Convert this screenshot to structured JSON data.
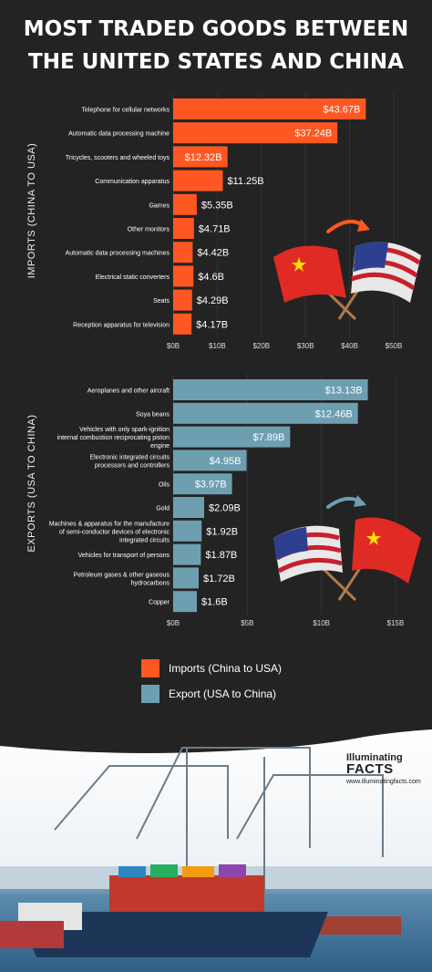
{
  "title_line1": "MOST TRADED GOODS BETWEEN",
  "title_line2": "THE UNITED STATES AND CHINA",
  "colors": {
    "imports": "#ff5722",
    "exports": "#6e9fb1",
    "background": "#232323"
  },
  "chart_data": [
    {
      "type": "bar",
      "orientation": "horizontal",
      "ylabel": "IMPORTS (CHINA TO USA)",
      "categories": [
        "Telephone for cellular networks",
        "Automatic data processing machine",
        "Tricycles, scooters and wheeled toys",
        "Communication apparatus",
        "Games",
        "Other monitors",
        "Automatic data processing machines",
        "Electrical static converters",
        "Seats",
        "Reception apparatus for television"
      ],
      "values": [
        43.67,
        37.24,
        12.32,
        11.25,
        5.35,
        4.71,
        4.42,
        4.6,
        4.29,
        4.17
      ],
      "value_labels": [
        "$43.67B",
        "$37.24B",
        "$12.32B",
        "$11.25B",
        "$5.35B",
        "$4.71B",
        "$4.42B",
        "$4.6B",
        "$4.29B",
        "$4.17B"
      ],
      "xticks": [
        "$0B",
        "$10B",
        "$20B",
        "$30B",
        "$40B",
        "$50B"
      ],
      "xlim": [
        0,
        50
      ]
    },
    {
      "type": "bar",
      "orientation": "horizontal",
      "ylabel": "EXPORTS (USA TO CHINA)",
      "categories": [
        "Aeroplanes and other aircraft",
        "Soya beans",
        "Vehicles with only spark-ignition internal combustion reciprocating piston engine",
        "Electronic integrated circuits processors and controllers",
        "Oils",
        "Gold",
        "Machines & apparatus for the manufacture of semi-conductor devices of electronic integrated circuits",
        "Vehicles for transport of persons",
        "Petroleum gases & other gaseous hydrocarbons",
        "Copper"
      ],
      "values": [
        13.13,
        12.46,
        7.89,
        4.95,
        3.97,
        2.09,
        1.92,
        1.87,
        1.72,
        1.6
      ],
      "value_labels": [
        "$13.13B",
        "$12.46B",
        "$7.89B",
        "$4.95B",
        "$3.97B",
        "$2.09B",
        "$1.92B",
        "$1.87B",
        "$1.72B",
        "$1.6B"
      ],
      "xticks": [
        "$0B",
        "$5B",
        "$10B",
        "$15B"
      ],
      "xlim": [
        0,
        15
      ]
    }
  ],
  "legend": [
    {
      "label": "Imports (China to USA)",
      "color": "#ff5722"
    },
    {
      "label": "Export (USA to China)",
      "color": "#6e9fb1"
    }
  ],
  "brand": {
    "line1": "Illuminating",
    "line2": "FACTS",
    "url": "www.illuminatingfacts.com"
  }
}
